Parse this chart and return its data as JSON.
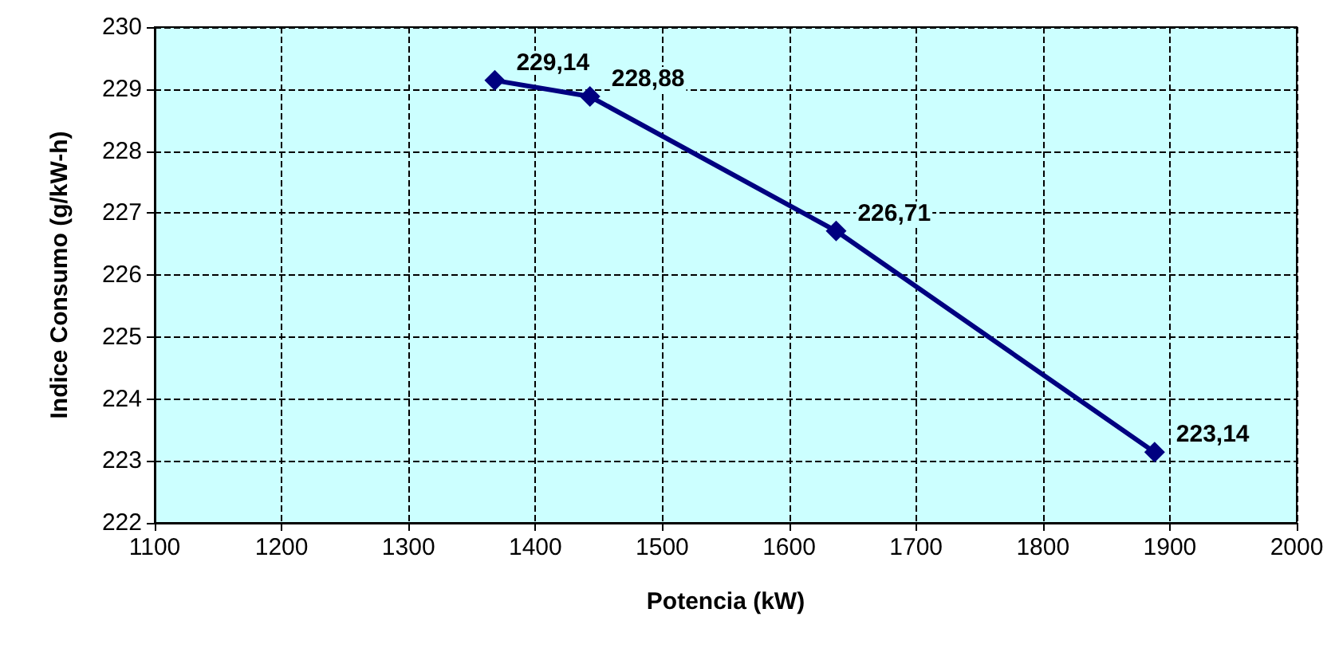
{
  "chart_data": {
    "type": "line",
    "xlabel": "Potencia (kW)",
    "ylabel": "Indice Consumo (g/kW-h)",
    "x": [
      1368,
      1443,
      1637,
      1888
    ],
    "series": [
      {
        "color": "#000080",
        "values": [
          229.14,
          228.88,
          226.71,
          223.14
        ],
        "value_labels": [
          "229,14",
          "228,88",
          "226,71",
          "223,14"
        ]
      }
    ],
    "xlim": [
      1100,
      2000
    ],
    "xticks": [
      1100,
      1200,
      1300,
      1400,
      1500,
      1600,
      1700,
      1800,
      1900,
      2000
    ],
    "ylim": [
      222,
      230
    ],
    "yticks": [
      222,
      223,
      224,
      225,
      226,
      227,
      228,
      229,
      230
    ],
    "grid": true,
    "marker": "diamond",
    "line_style": "solid"
  }
}
